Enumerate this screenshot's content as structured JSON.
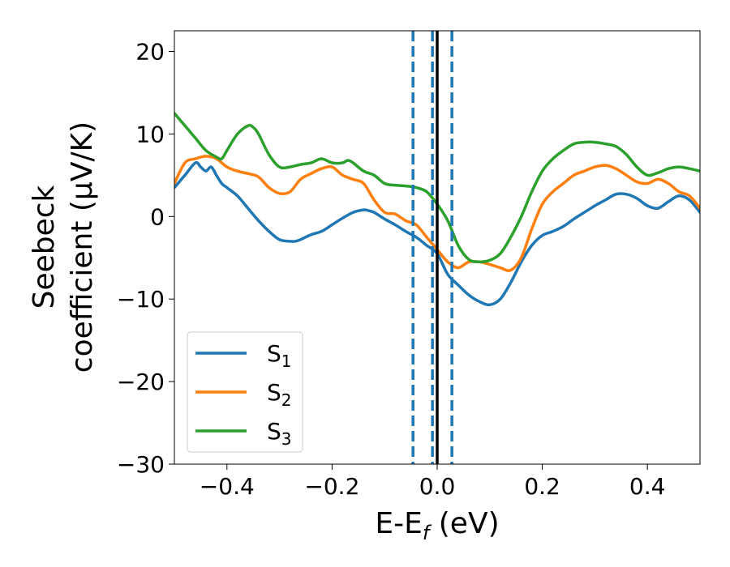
{
  "chart_data": {
    "type": "line",
    "title": "",
    "xlabel": "E-E",
    "xlabel_sub": "f",
    "xlabel_suffix": " (eV)",
    "ylabel_line1": "Seebeck",
    "ylabel_line2": "coefficient  (μV/K)",
    "xlim": [
      -0.5,
      0.5
    ],
    "ylim": [
      -30,
      22.5
    ],
    "xticks": [
      -0.4,
      -0.2,
      0.0,
      0.2,
      0.4
    ],
    "xtick_labels": [
      "−0.4",
      "−0.2",
      "0.0",
      "0.2",
      "0.4"
    ],
    "yticks": [
      -30,
      -20,
      -10,
      0,
      10,
      20
    ],
    "ytick_labels": [
      "−30",
      "−20",
      "−10",
      "0",
      "10",
      "20"
    ],
    "grid": false,
    "legend_position": "lower-left",
    "vlines": [
      {
        "x": 0.0,
        "style": "solid",
        "color": "#000000"
      },
      {
        "x": -0.046,
        "style": "dashed",
        "color": "#1f77b4"
      },
      {
        "x": -0.009,
        "style": "dashed",
        "color": "#1f77b4"
      },
      {
        "x": 0.028,
        "style": "dashed",
        "color": "#1f77b4"
      }
    ],
    "series": [
      {
        "name": "S",
        "subscript": "1",
        "color": "#1f77b4",
        "x": [
          -0.5,
          -0.48,
          -0.46,
          -0.45,
          -0.44,
          -0.43,
          -0.42,
          -0.41,
          -0.4,
          -0.38,
          -0.36,
          -0.34,
          -0.32,
          -0.3,
          -0.28,
          -0.27,
          -0.26,
          -0.24,
          -0.22,
          -0.2,
          -0.18,
          -0.16,
          -0.14,
          -0.13,
          -0.12,
          -0.1,
          -0.08,
          -0.06,
          -0.04,
          -0.02,
          0.0,
          0.02,
          0.04,
          0.06,
          0.08,
          0.1,
          0.12,
          0.14,
          0.16,
          0.18,
          0.2,
          0.22,
          0.24,
          0.26,
          0.28,
          0.3,
          0.32,
          0.34,
          0.36,
          0.38,
          0.4,
          0.42,
          0.44,
          0.46,
          0.48,
          0.5
        ],
        "y": [
          3.5,
          5.0,
          6.5,
          6.0,
          5.5,
          6.0,
          5.0,
          4.0,
          3.5,
          2.5,
          1.0,
          -0.5,
          -1.8,
          -2.8,
          -3.0,
          -3.0,
          -2.8,
          -2.2,
          -1.8,
          -1.0,
          -0.2,
          0.5,
          0.8,
          0.7,
          0.5,
          -0.3,
          -1.0,
          -1.8,
          -2.5,
          -3.5,
          -4.5,
          -7.0,
          -8.3,
          -9.5,
          -10.3,
          -10.7,
          -10.0,
          -8.0,
          -5.5,
          -3.5,
          -2.3,
          -1.8,
          -1.2,
          -0.3,
          0.5,
          1.3,
          2.0,
          2.7,
          2.7,
          2.2,
          1.3,
          1.0,
          1.8,
          2.5,
          2.0,
          0.5
        ]
      },
      {
        "name": "S",
        "subscript": "2",
        "color": "#ff7f0e",
        "x": [
          -0.5,
          -0.48,
          -0.46,
          -0.44,
          -0.42,
          -0.4,
          -0.38,
          -0.36,
          -0.34,
          -0.32,
          -0.3,
          -0.28,
          -0.26,
          -0.24,
          -0.22,
          -0.2,
          -0.18,
          -0.16,
          -0.14,
          -0.12,
          -0.1,
          -0.08,
          -0.06,
          -0.04,
          -0.02,
          0.0,
          0.02,
          0.04,
          0.06,
          0.08,
          0.1,
          0.12,
          0.14,
          0.16,
          0.18,
          0.2,
          0.22,
          0.24,
          0.26,
          0.28,
          0.3,
          0.32,
          0.34,
          0.36,
          0.38,
          0.4,
          0.42,
          0.44,
          0.46,
          0.48,
          0.5
        ],
        "y": [
          4.0,
          6.5,
          7.0,
          7.3,
          7.0,
          6.0,
          5.5,
          5.2,
          4.8,
          3.5,
          2.8,
          3.0,
          4.5,
          5.2,
          5.8,
          6.0,
          5.0,
          4.5,
          4.0,
          2.0,
          0.5,
          0.3,
          -0.5,
          -1.0,
          -2.5,
          -4.0,
          -5.5,
          -6.2,
          -5.5,
          -5.5,
          -5.8,
          -6.2,
          -6.5,
          -5.0,
          -1.5,
          1.5,
          3.0,
          4.0,
          5.0,
          5.5,
          6.0,
          6.2,
          5.8,
          5.0,
          4.2,
          4.0,
          4.5,
          4.0,
          3.0,
          2.5,
          1.0
        ]
      },
      {
        "name": "S",
        "subscript": "3",
        "color": "#2ca02c",
        "x": [
          -0.5,
          -0.48,
          -0.46,
          -0.44,
          -0.42,
          -0.41,
          -0.4,
          -0.38,
          -0.36,
          -0.35,
          -0.34,
          -0.32,
          -0.3,
          -0.28,
          -0.26,
          -0.24,
          -0.22,
          -0.2,
          -0.18,
          -0.17,
          -0.16,
          -0.14,
          -0.12,
          -0.1,
          -0.08,
          -0.06,
          -0.04,
          -0.02,
          0.0,
          0.02,
          0.04,
          0.06,
          0.08,
          0.1,
          0.12,
          0.14,
          0.16,
          0.18,
          0.2,
          0.22,
          0.24,
          0.26,
          0.28,
          0.3,
          0.32,
          0.34,
          0.36,
          0.38,
          0.4,
          0.42,
          0.44,
          0.46,
          0.48,
          0.5
        ],
        "y": [
          12.5,
          11.0,
          9.5,
          8.0,
          7.2,
          7.0,
          8.0,
          10.0,
          11.0,
          10.8,
          10.0,
          7.5,
          6.0,
          6.0,
          6.3,
          6.5,
          7.0,
          6.5,
          6.5,
          6.8,
          6.5,
          5.5,
          5.0,
          4.0,
          3.8,
          3.7,
          3.5,
          3.0,
          1.5,
          -0.5,
          -3.5,
          -5.2,
          -5.5,
          -5.3,
          -4.5,
          -2.5,
          0.0,
          3.0,
          5.5,
          7.0,
          8.0,
          8.8,
          9.0,
          9.0,
          8.8,
          8.5,
          7.5,
          6.0,
          5.0,
          5.3,
          5.8,
          6.0,
          5.8,
          5.5
        ]
      }
    ]
  }
}
